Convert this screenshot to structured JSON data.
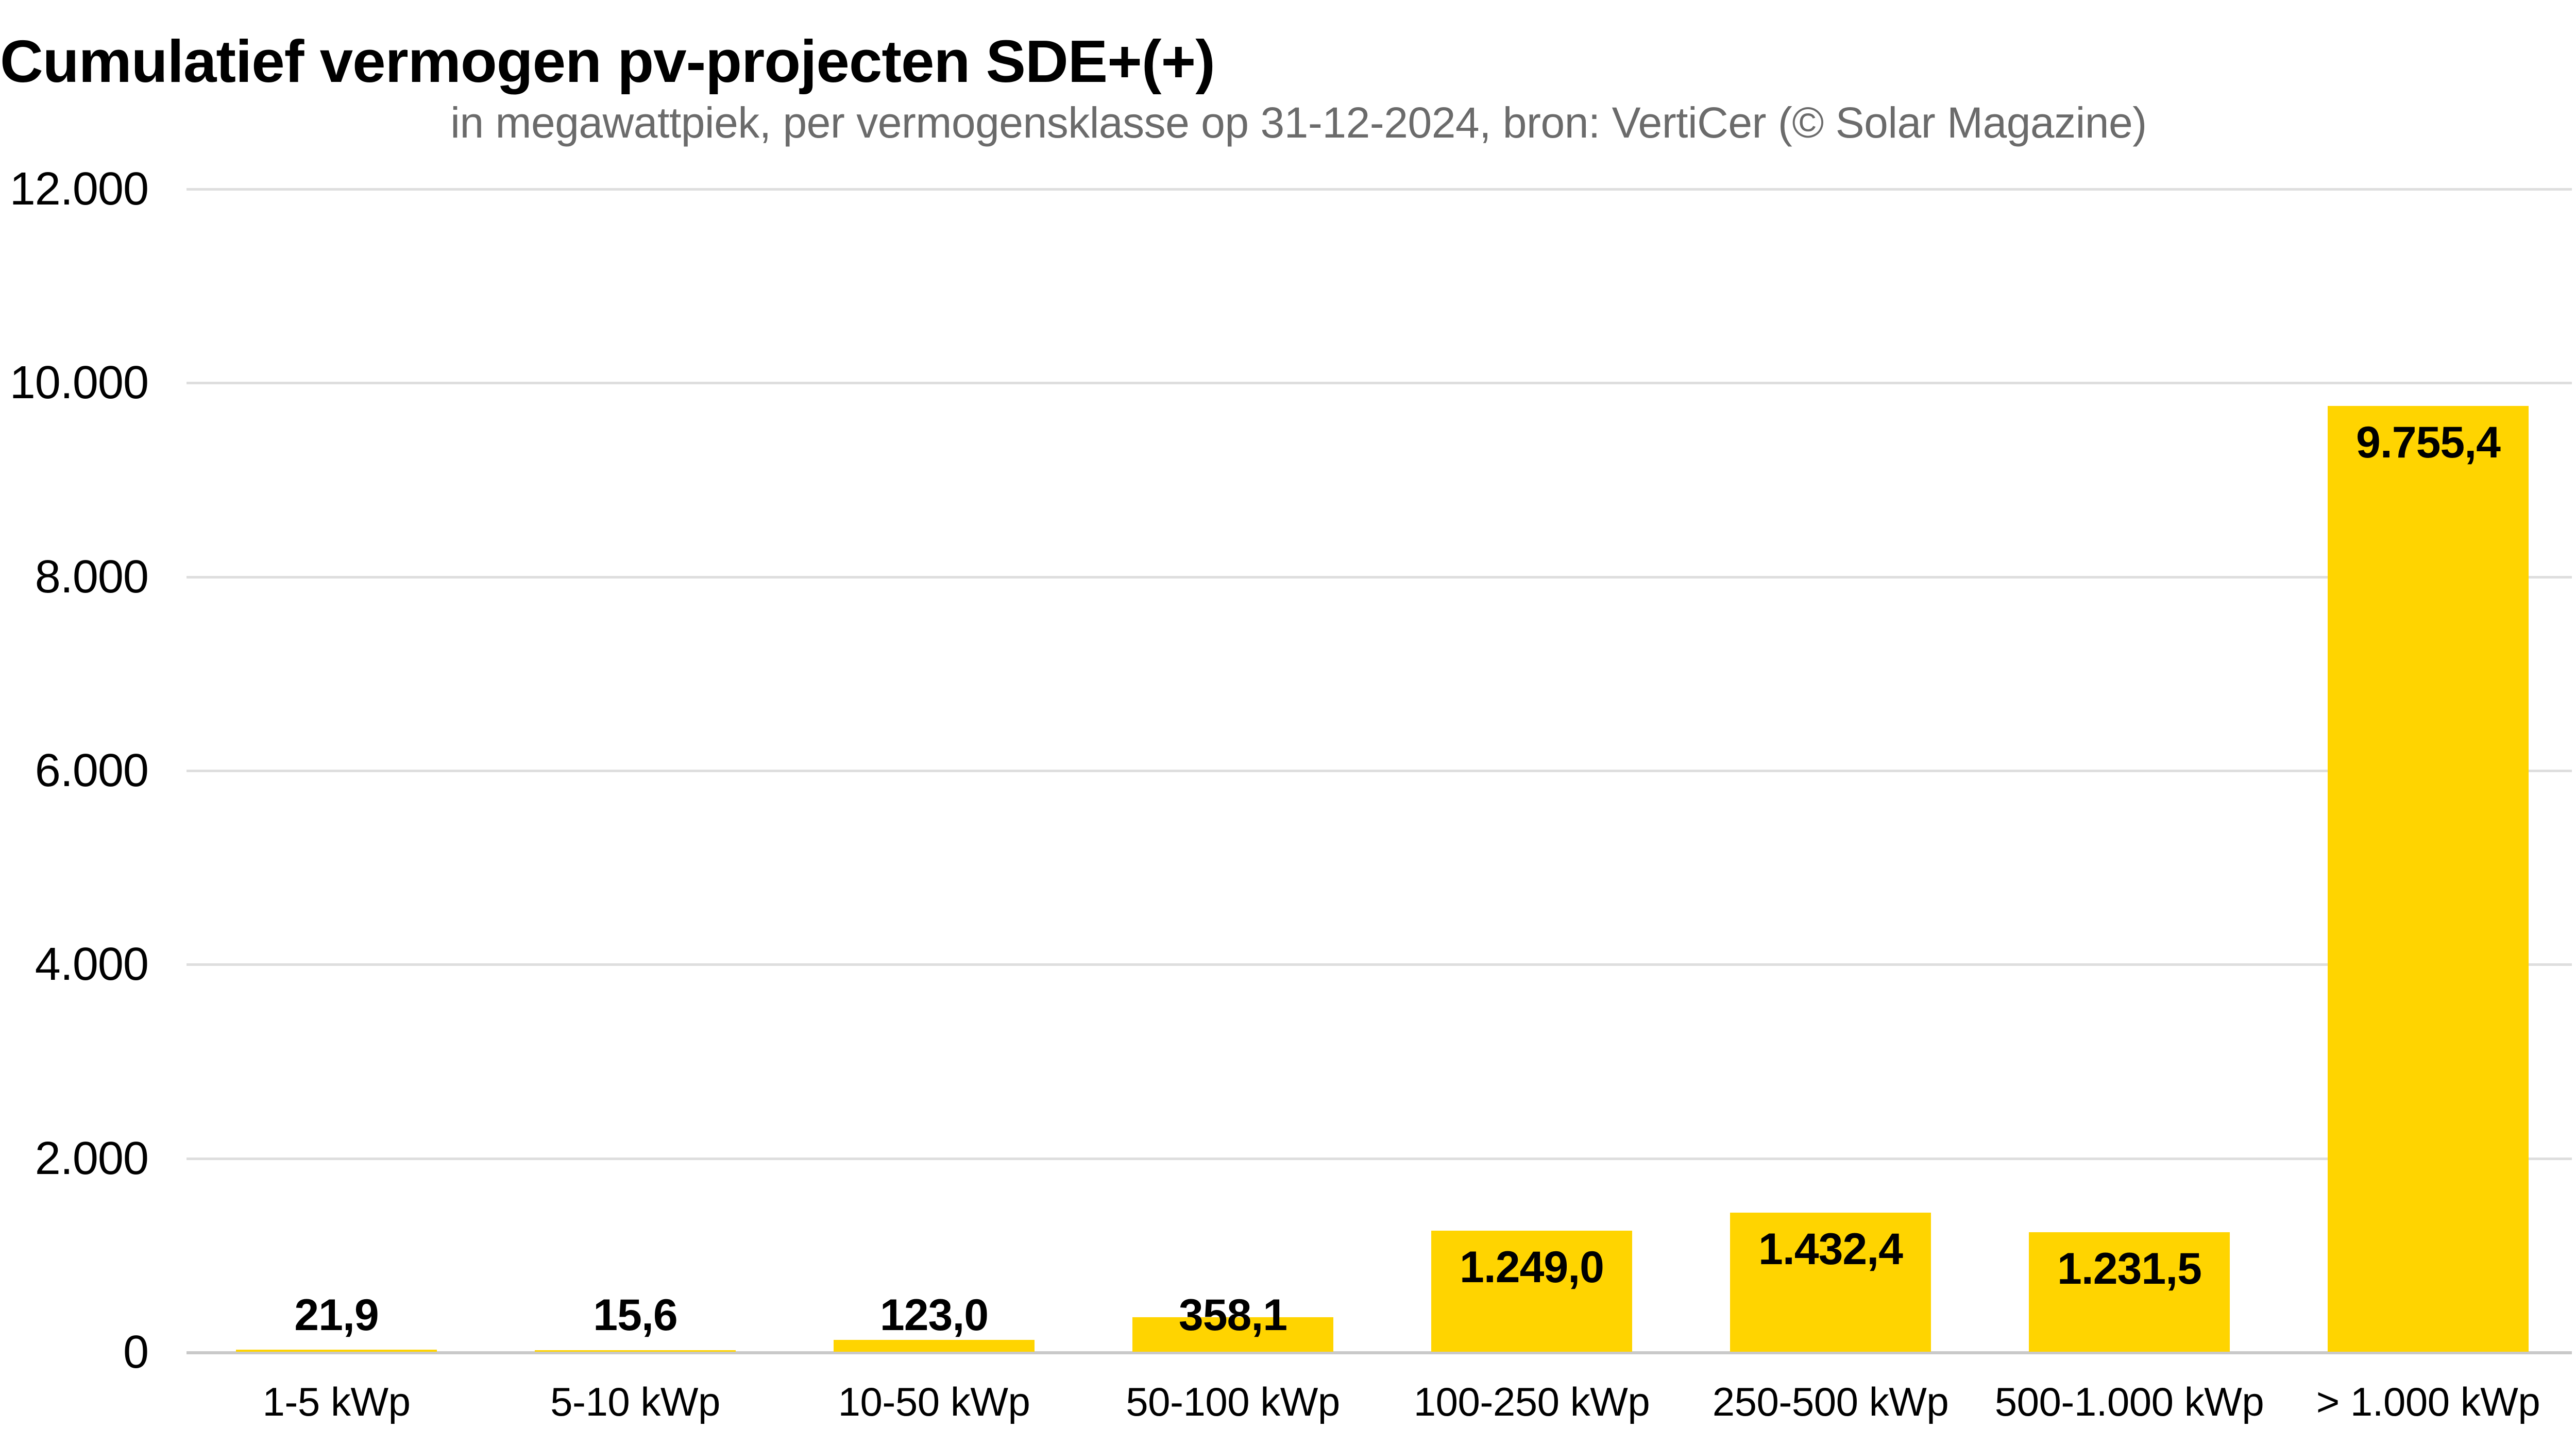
{
  "chart": {
    "title": "Cumulatief vermogen pv-projecten SDE+(+)",
    "subtitle": "in megawattpiek, per vermogensklasse op 31-12-2024, bron: VertiCer (© Solar Magazine)",
    "colors": {
      "bar": "#ffd400",
      "gridline": "#dedede",
      "axis_line": "#c9c9c9",
      "subtitle_text": "#6b6b6b",
      "label_text": "#000000"
    }
  },
  "chart_data": {
    "type": "bar",
    "title": "Cumulatief vermogen pv-projecten SDE+(+)",
    "subtitle": "in megawattpiek, per vermogensklasse op 31-12-2024, bron: VertiCer (© Solar Magazine)",
    "source": "VertiCer (© Solar Magazine)",
    "date": "31-12-2024",
    "unit": "megawattpiek",
    "categories": [
      "1-5 kWp",
      "5-10 kWp",
      "10-50 kWp",
      "50-100 kWp",
      "100-250 kWp",
      "250-500 kWp",
      "500-1.000 kWp",
      "> 1.000 kWp"
    ],
    "values": [
      21.9,
      15.6,
      123.0,
      358.1,
      1249.0,
      1432.4,
      1231.5,
      9755.4
    ],
    "value_labels": [
      "21,9",
      "15,6",
      "123,0",
      "358,1",
      "1.249,0",
      "1.432,4",
      "1.231,5",
      "9.755,4"
    ],
    "y_ticks": [
      {
        "value": 12000,
        "label": "12.000"
      },
      {
        "value": 10000,
        "label": "10.000"
      },
      {
        "value": 8000,
        "label": "8.000"
      },
      {
        "value": 6000,
        "label": "6.000"
      },
      {
        "value": 4000,
        "label": "4.000"
      },
      {
        "value": 2000,
        "label": "2.000"
      },
      {
        "value": 0,
        "label": "0"
      }
    ],
    "ylim": [
      0,
      12000
    ],
    "xlabel": "",
    "ylabel": "",
    "grid": true,
    "legend": "none",
    "bar_color": "#ffd400"
  }
}
